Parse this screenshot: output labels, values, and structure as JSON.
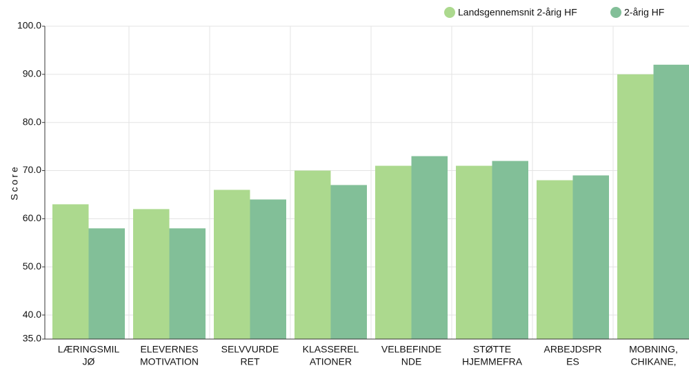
{
  "chart_data": {
    "type": "bar",
    "categories": [
      [
        "LÆRINGSMIL",
        "JØ"
      ],
      [
        "ELEVERNES",
        "MOTIVATION"
      ],
      [
        "SELVVURDE",
        "RET"
      ],
      [
        "KLASSEREL",
        "ATIONER"
      ],
      [
        "VELBEFINDE",
        "NDE"
      ],
      [
        "STØTTE",
        "HJEMMEFRA"
      ],
      [
        "ARBEJDSPR",
        "ES"
      ],
      [
        "MOBNING,",
        "CHIKANE,"
      ]
    ],
    "series": [
      {
        "name": "Landsgennemsnit 2-årig HF",
        "color": "#acd98e",
        "values": [
          63,
          62,
          66,
          70,
          71,
          71,
          68,
          90
        ]
      },
      {
        "name": "2-årig HF",
        "color": "#82bf98",
        "values": [
          58,
          58,
          64,
          67,
          73,
          72,
          69,
          92
        ]
      }
    ],
    "y_label": "Score",
    "ylim": [
      35,
      100
    ],
    "yticks": [
      {
        "value": 35,
        "label": "35.0"
      },
      {
        "value": 40,
        "label": "40.0"
      },
      {
        "value": 50,
        "label": "50.0"
      },
      {
        "value": 60,
        "label": "60.0"
      },
      {
        "value": 70,
        "label": "70.0"
      },
      {
        "value": 80,
        "label": "80.0"
      },
      {
        "value": 90,
        "label": "90.0"
      },
      {
        "value": 100,
        "label": "100.0"
      }
    ],
    "grid": true,
    "legend": "top-right"
  }
}
